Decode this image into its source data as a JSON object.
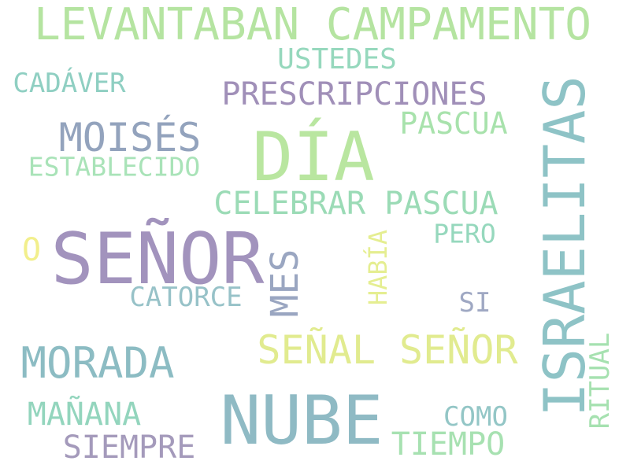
{
  "words": [
    {
      "text": "LEVANTABAN CAMPAMENTO",
      "color": "#b5e4a1"
    },
    {
      "text": "USTEDES",
      "color": "#96d8bd"
    },
    {
      "text": "CADÁVER",
      "color": "#8fcfc2"
    },
    {
      "text": "PRESCRIPCIONES",
      "color": "#a08fb8"
    },
    {
      "text": "ISRAELITAS",
      "color": "#8ec3c6"
    },
    {
      "text": "MOISÉS",
      "color": "#93a3bd"
    },
    {
      "text": "DÍA",
      "color": "#b9e6a0"
    },
    {
      "text": "PASCUA",
      "color": "#a8e2ac"
    },
    {
      "text": "ESTABLECIDO",
      "color": "#a9e3b8"
    },
    {
      "text": "CELEBRAR PASCUA",
      "color": "#9bdbb6"
    },
    {
      "text": "O",
      "color": "#f2ef8c"
    },
    {
      "text": "SEÑOR",
      "color": "#a293bd"
    },
    {
      "text": "HABÍA",
      "color": "#e5ee91"
    },
    {
      "text": "PERO",
      "color": "#96d8bd"
    },
    {
      "text": "MES",
      "color": "#9aa6c1"
    },
    {
      "text": "CATORCE",
      "color": "#97c2c8"
    },
    {
      "text": "SI",
      "color": "#9fa8c3"
    },
    {
      "text": "MORADA",
      "color": "#8cbcc3"
    },
    {
      "text": "SEÑAL SEÑOR",
      "color": "#e1eb8f"
    },
    {
      "text": "RITUAL",
      "color": "#a6e1b0"
    },
    {
      "text": "NUBE",
      "color": "#8fbac4"
    },
    {
      "text": "MAÑANA",
      "color": "#93d5bd"
    },
    {
      "text": "COMO",
      "color": "#93c6c6"
    },
    {
      "text": "SIEMPRE",
      "color": "#a49abb"
    },
    {
      "text": "TIEMPO",
      "color": "#a7e1b1"
    }
  ]
}
